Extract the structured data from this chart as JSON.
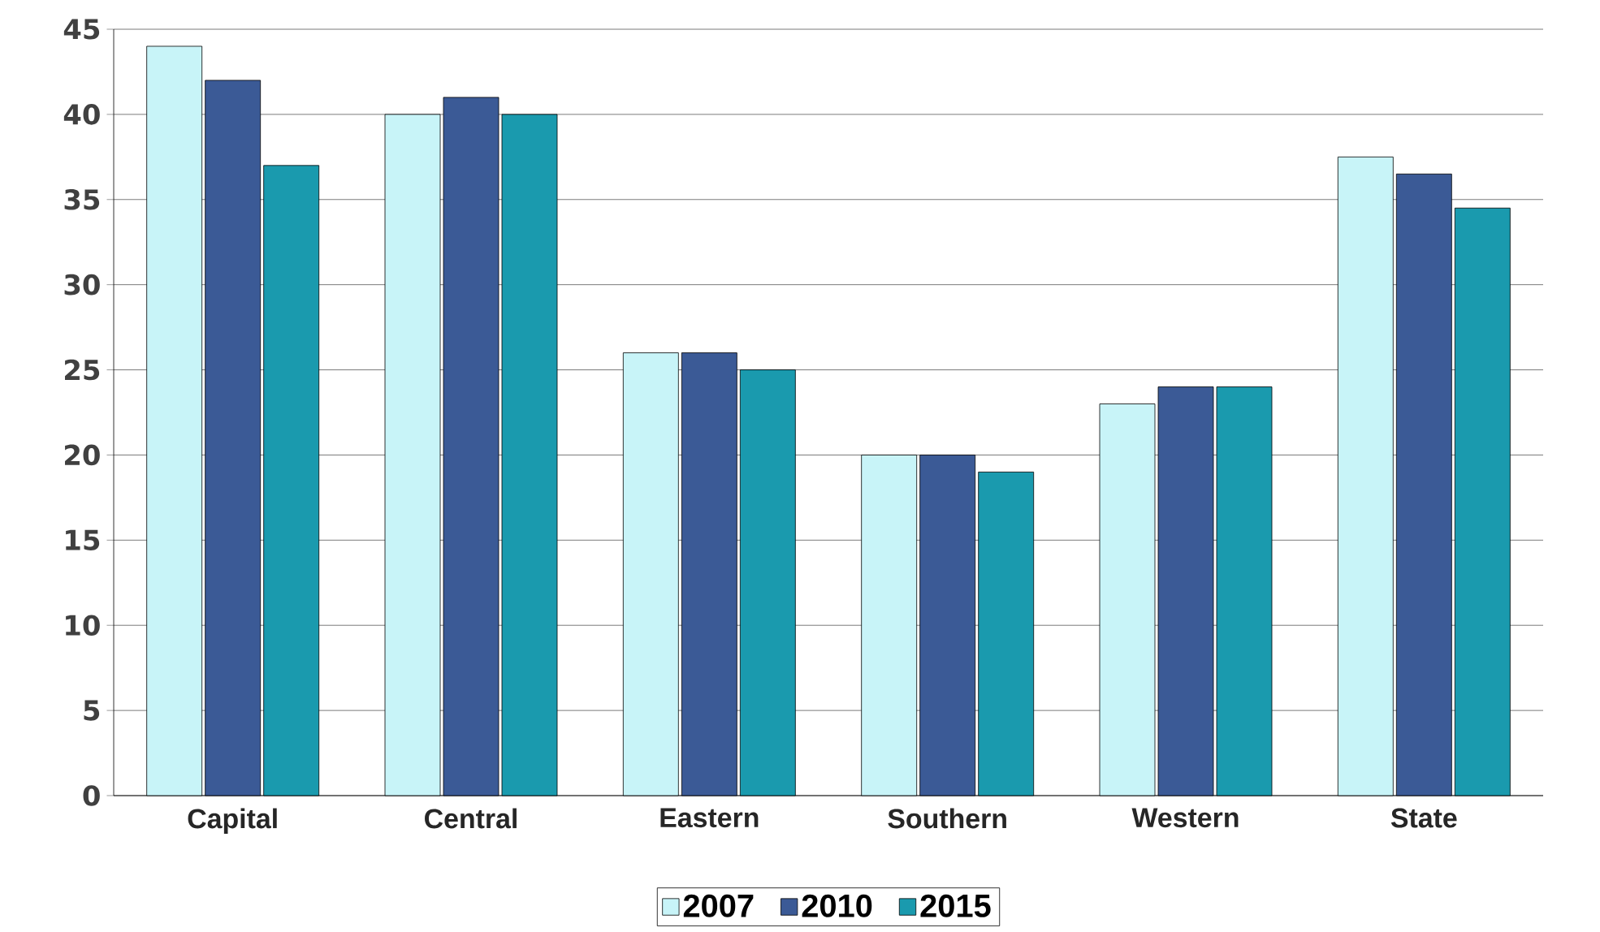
{
  "chart_data": {
    "type": "bar",
    "categories": [
      "Capital",
      "Central",
      "Eastern",
      "Southern",
      "Western",
      "State"
    ],
    "series": [
      {
        "name": "2007",
        "color": "#c8f4f8",
        "values": [
          44,
          40,
          26,
          20,
          23,
          37.5
        ]
      },
      {
        "name": "2010",
        "color": "#3b5a96",
        "values": [
          42,
          41,
          26,
          20,
          24,
          36.5
        ]
      },
      {
        "name": "2015",
        "color": "#1a9aae",
        "values": [
          37,
          40,
          25,
          19,
          24,
          34.5
        ]
      }
    ],
    "ylim": [
      0,
      45
    ],
    "yticks": [
      0,
      5,
      10,
      15,
      20,
      25,
      30,
      35,
      40,
      45
    ],
    "grid": "y",
    "legend": "bottom"
  }
}
